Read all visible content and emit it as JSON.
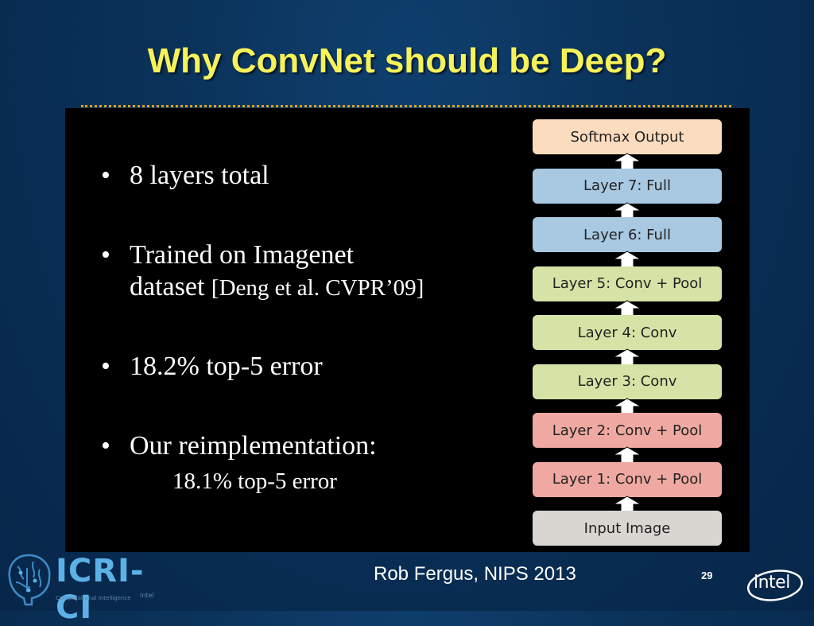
{
  "slide": {
    "title": "Why ConvNet should be Deep?",
    "footer_author": "Rob Fergus, NIPS 2013",
    "page_number": "29"
  },
  "bullets": [
    {
      "text": "8 layers total"
    },
    {
      "text": "Trained on Imagenet",
      "continuation": "dataset",
      "citation": "[Deng et al. CVPR’09]"
    },
    {
      "text": "18.2% top-5 error"
    },
    {
      "text": "Our reimplementation:",
      "sub": "18.1% top-5 error"
    }
  ],
  "diagram": {
    "layers": [
      {
        "label": "Softmax Output",
        "color": "#fcdcbe"
      },
      {
        "label": "Layer 7: Full",
        "color": "#a9c8e2"
      },
      {
        "label": "Layer 6: Full",
        "color": "#a9c8e2"
      },
      {
        "label": "Layer 5: Conv + Pool",
        "color": "#d5e4a6"
      },
      {
        "label": "Layer 4: Conv",
        "color": "#d5e4a6"
      },
      {
        "label": "Layer 3: Conv",
        "color": "#d5e4a6"
      },
      {
        "label": "Layer 2: Conv + Pool",
        "color": "#f0a9a2"
      },
      {
        "label": "Layer 1: Conv + Pool",
        "color": "#f0a9a2"
      },
      {
        "label": "Input Image",
        "color": "#d9d6d2"
      }
    ]
  },
  "logos": {
    "left_text": "ICRI-CI",
    "left_sub": "Computational Intelligence",
    "left_small": "intel",
    "right_text": "intel"
  }
}
